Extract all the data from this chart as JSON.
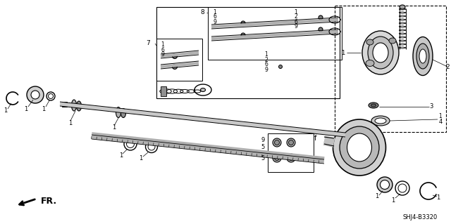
{
  "background_color": "#ffffff",
  "part_number_code": "SHJ4-B3320",
  "fr_label": "FR.",
  "fig_width": 6.4,
  "fig_height": 3.19,
  "dpi": 100
}
